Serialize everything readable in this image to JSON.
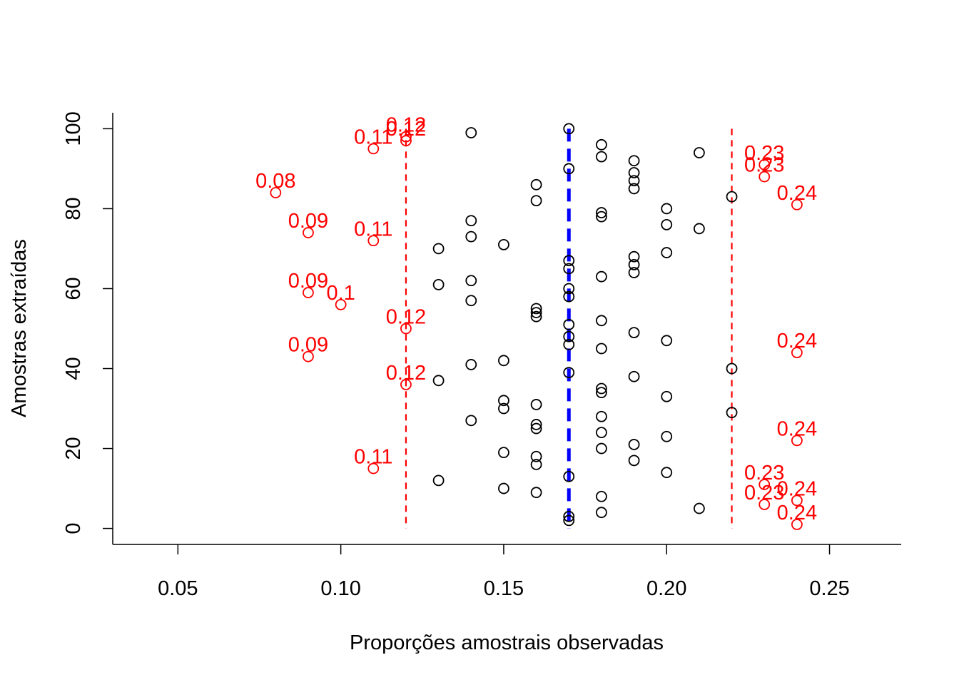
{
  "chart_data": {
    "type": "scatter",
    "xlabel": "Proporções amostrais observadas",
    "ylabel": "Amostras extraídas",
    "xlim": [
      0.03,
      0.272
    ],
    "ylim": [
      -4,
      104
    ],
    "x_ticks": [
      0.05,
      0.1,
      0.15,
      0.2,
      0.25
    ],
    "x_tick_labels": [
      "0.05",
      "0.10",
      "0.15",
      "0.20",
      "0.25"
    ],
    "y_ticks": [
      0,
      20,
      40,
      60,
      80,
      100
    ],
    "y_tick_labels": [
      "0",
      "20",
      "40",
      "60",
      "80",
      "100"
    ],
    "grid": false,
    "colors": {
      "inside": "#000000",
      "outside": "#ff0000",
      "center": "#0000ff",
      "limits": "#ff0000"
    },
    "vertical_lines": [
      {
        "x": 0.12,
        "y0": 0,
        "y1": 100,
        "color": "#ff0000",
        "style": "dashed"
      },
      {
        "x": 0.17,
        "y0": 0,
        "y1": 100,
        "color": "#0000ff",
        "style": "dashed-thick"
      },
      {
        "x": 0.22,
        "y0": 0,
        "y1": 100,
        "color": "#ff0000",
        "style": "dashed"
      }
    ],
    "points_inside": [
      {
        "x": 0.14,
        "y": 99
      },
      {
        "x": 0.17,
        "y": 100
      },
      {
        "x": 0.18,
        "y": 96
      },
      {
        "x": 0.21,
        "y": 94
      },
      {
        "x": 0.18,
        "y": 93
      },
      {
        "x": 0.19,
        "y": 92
      },
      {
        "x": 0.17,
        "y": 90
      },
      {
        "x": 0.19,
        "y": 89
      },
      {
        "x": 0.19,
        "y": 87
      },
      {
        "x": 0.16,
        "y": 86
      },
      {
        "x": 0.19,
        "y": 85
      },
      {
        "x": 0.22,
        "y": 83
      },
      {
        "x": 0.16,
        "y": 82
      },
      {
        "x": 0.2,
        "y": 80
      },
      {
        "x": 0.18,
        "y": 79
      },
      {
        "x": 0.18,
        "y": 78
      },
      {
        "x": 0.14,
        "y": 77
      },
      {
        "x": 0.2,
        "y": 76
      },
      {
        "x": 0.21,
        "y": 75
      },
      {
        "x": 0.14,
        "y": 73
      },
      {
        "x": 0.15,
        "y": 71
      },
      {
        "x": 0.13,
        "y": 70
      },
      {
        "x": 0.2,
        "y": 69
      },
      {
        "x": 0.19,
        "y": 68
      },
      {
        "x": 0.17,
        "y": 67
      },
      {
        "x": 0.19,
        "y": 66
      },
      {
        "x": 0.17,
        "y": 65
      },
      {
        "x": 0.19,
        "y": 64
      },
      {
        "x": 0.18,
        "y": 63
      },
      {
        "x": 0.14,
        "y": 62
      },
      {
        "x": 0.13,
        "y": 61
      },
      {
        "x": 0.17,
        "y": 60
      },
      {
        "x": 0.17,
        "y": 58
      },
      {
        "x": 0.14,
        "y": 57
      },
      {
        "x": 0.16,
        "y": 55
      },
      {
        "x": 0.16,
        "y": 54
      },
      {
        "x": 0.16,
        "y": 53
      },
      {
        "x": 0.18,
        "y": 52
      },
      {
        "x": 0.17,
        "y": 51
      },
      {
        "x": 0.19,
        "y": 49
      },
      {
        "x": 0.17,
        "y": 48
      },
      {
        "x": 0.2,
        "y": 47
      },
      {
        "x": 0.17,
        "y": 46
      },
      {
        "x": 0.18,
        "y": 45
      },
      {
        "x": 0.15,
        "y": 42
      },
      {
        "x": 0.14,
        "y": 41
      },
      {
        "x": 0.22,
        "y": 40
      },
      {
        "x": 0.17,
        "y": 39
      },
      {
        "x": 0.19,
        "y": 38
      },
      {
        "x": 0.13,
        "y": 37
      },
      {
        "x": 0.18,
        "y": 35
      },
      {
        "x": 0.18,
        "y": 34
      },
      {
        "x": 0.2,
        "y": 33
      },
      {
        "x": 0.15,
        "y": 32
      },
      {
        "x": 0.16,
        "y": 31
      },
      {
        "x": 0.15,
        "y": 30
      },
      {
        "x": 0.22,
        "y": 29
      },
      {
        "x": 0.18,
        "y": 28
      },
      {
        "x": 0.14,
        "y": 27
      },
      {
        "x": 0.16,
        "y": 26
      },
      {
        "x": 0.16,
        "y": 25
      },
      {
        "x": 0.18,
        "y": 24
      },
      {
        "x": 0.2,
        "y": 23
      },
      {
        "x": 0.19,
        "y": 21
      },
      {
        "x": 0.18,
        "y": 20
      },
      {
        "x": 0.15,
        "y": 19
      },
      {
        "x": 0.16,
        "y": 18
      },
      {
        "x": 0.19,
        "y": 17
      },
      {
        "x": 0.16,
        "y": 16
      },
      {
        "x": 0.2,
        "y": 14
      },
      {
        "x": 0.17,
        "y": 13
      },
      {
        "x": 0.13,
        "y": 12
      },
      {
        "x": 0.15,
        "y": 10
      },
      {
        "x": 0.16,
        "y": 9
      },
      {
        "x": 0.18,
        "y": 8
      },
      {
        "x": 0.21,
        "y": 5
      },
      {
        "x": 0.18,
        "y": 4
      },
      {
        "x": 0.17,
        "y": 3
      },
      {
        "x": 0.17,
        "y": 2
      }
    ],
    "points_outside": [
      {
        "x": 0.12,
        "y": 98,
        "label": "0.12"
      },
      {
        "x": 0.12,
        "y": 97,
        "label": "0.12"
      },
      {
        "x": 0.11,
        "y": 95,
        "label": "0.11"
      },
      {
        "x": 0.08,
        "y": 84,
        "label": "0.08"
      },
      {
        "x": 0.09,
        "y": 74,
        "label": "0.09"
      },
      {
        "x": 0.11,
        "y": 72,
        "label": "0.11"
      },
      {
        "x": 0.09,
        "y": 59,
        "label": "0.09"
      },
      {
        "x": 0.1,
        "y": 56,
        "label": "0.1"
      },
      {
        "x": 0.12,
        "y": 50,
        "label": "0.12"
      },
      {
        "x": 0.09,
        "y": 43,
        "label": "0.09"
      },
      {
        "x": 0.12,
        "y": 36,
        "label": "0.12"
      },
      {
        "x": 0.11,
        "y": 15,
        "label": "0.11"
      },
      {
        "x": 0.23,
        "y": 91,
        "label": "0.23"
      },
      {
        "x": 0.23,
        "y": 88,
        "label": "0.23"
      },
      {
        "x": 0.24,
        "y": 81,
        "label": "0.24"
      },
      {
        "x": 0.24,
        "y": 44,
        "label": "0.24"
      },
      {
        "x": 0.24,
        "y": 22,
        "label": "0.24"
      },
      {
        "x": 0.23,
        "y": 11,
        "label": "0.23"
      },
      {
        "x": 0.24,
        "y": 7,
        "label": "0.24"
      },
      {
        "x": 0.23,
        "y": 6,
        "label": "0.23"
      },
      {
        "x": 0.24,
        "y": 1,
        "label": "0.24"
      }
    ]
  }
}
